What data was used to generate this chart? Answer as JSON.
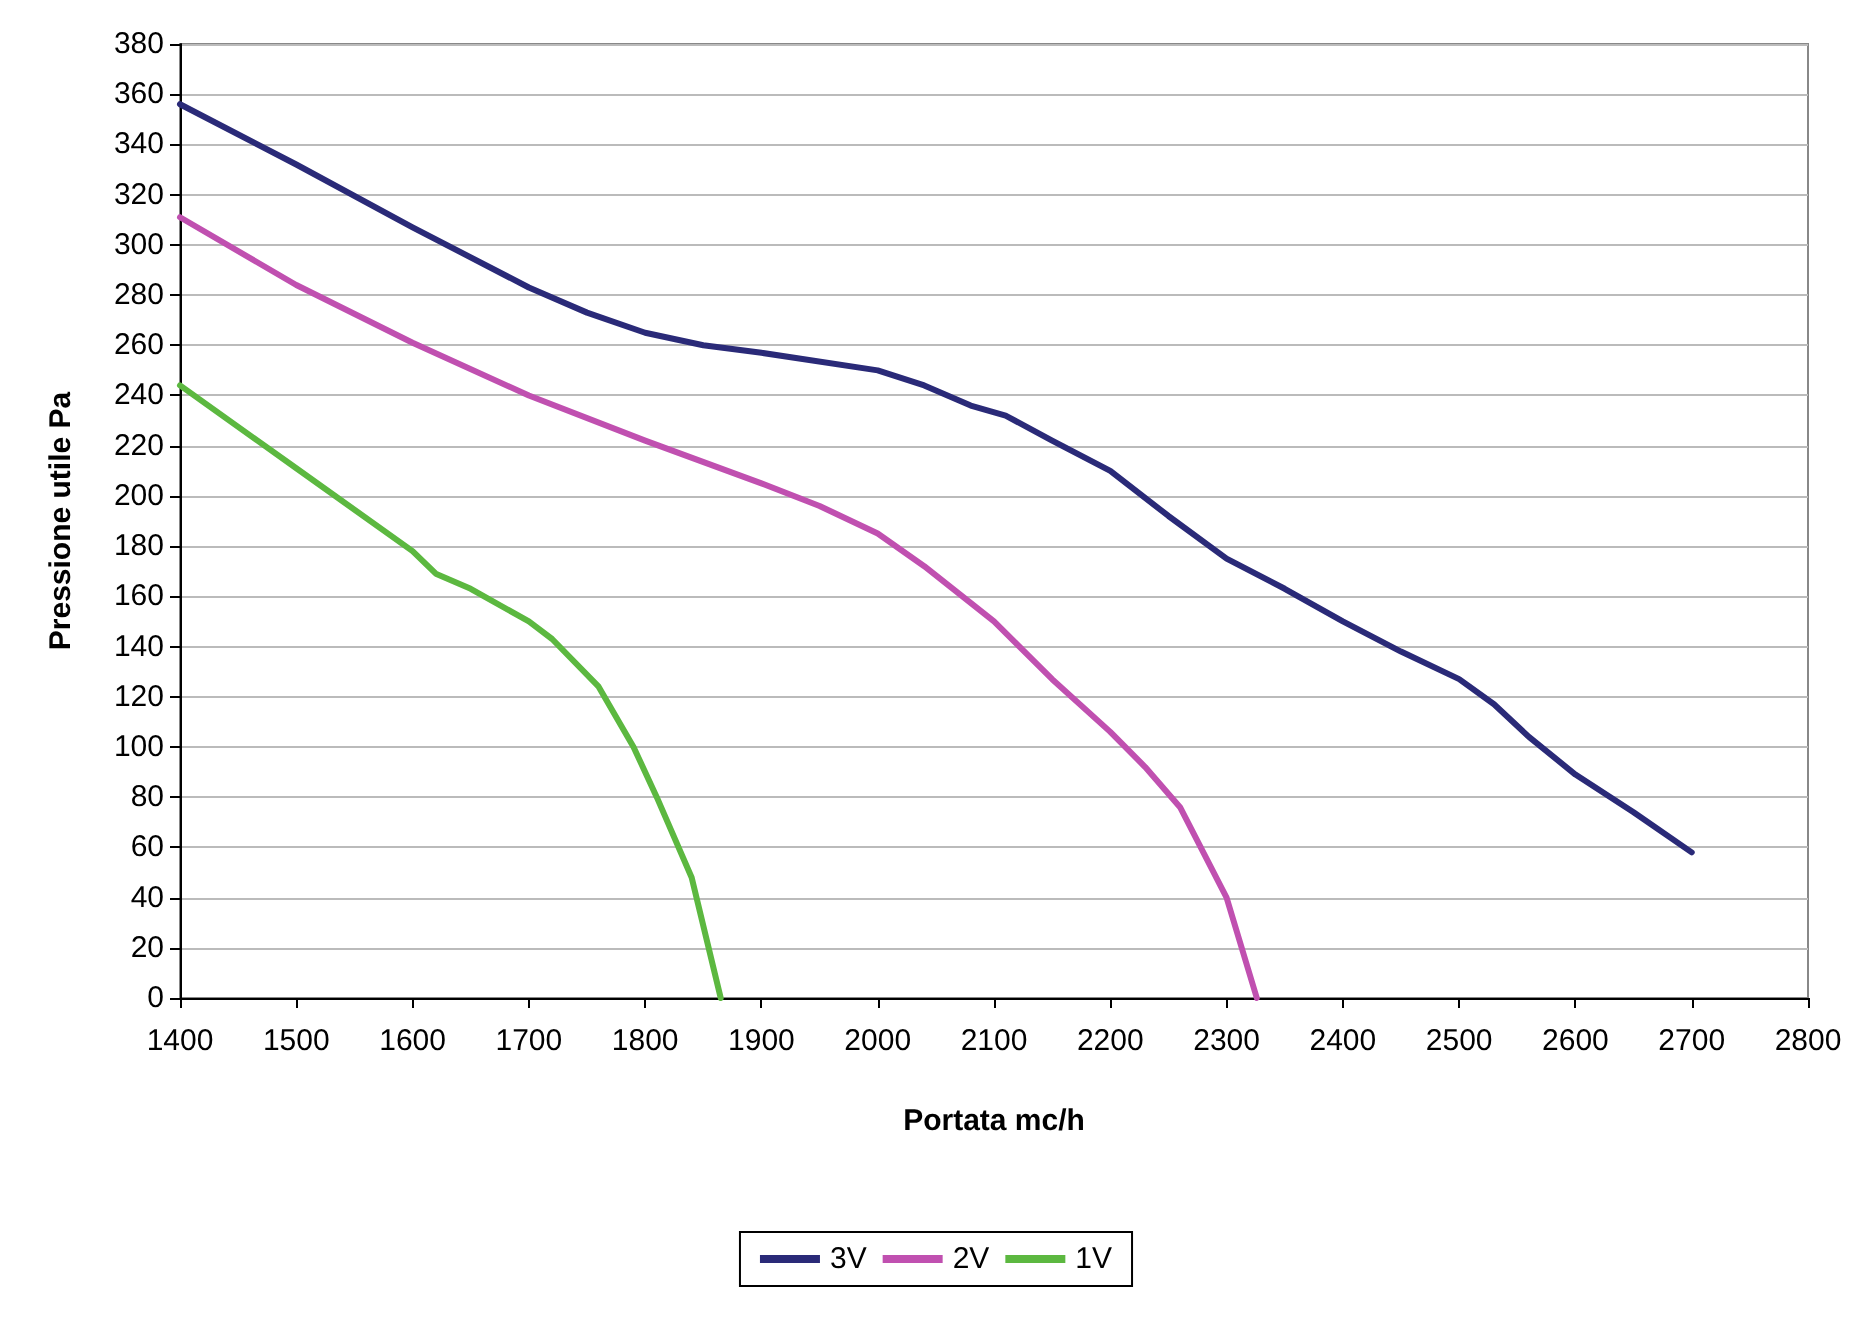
{
  "chart_data": {
    "type": "line",
    "xlabel": "Portata mc/h",
    "ylabel": "Pressione utile Pa",
    "xlim": [
      1400,
      2800
    ],
    "xticks": [
      1400,
      1500,
      1600,
      1700,
      1800,
      1900,
      2000,
      2100,
      2200,
      2300,
      2400,
      2500,
      2600,
      2700,
      2800
    ],
    "ylim": [
      0,
      380
    ],
    "yticks": [
      0,
      20,
      40,
      60,
      80,
      100,
      120,
      140,
      160,
      180,
      200,
      220,
      240,
      260,
      280,
      300,
      320,
      340,
      360,
      380
    ],
    "grid": "y",
    "legend": "bottom",
    "marker": "none",
    "line_style": "solid",
    "series": [
      {
        "name": "3V",
        "color": "#2a2a78",
        "x": [
          1400,
          1500,
          1600,
          1700,
          1750,
          1800,
          1850,
          1900,
          2000,
          2040,
          2080,
          2110,
          2150,
          2200,
          2250,
          2300,
          2350,
          2400,
          2450,
          2500,
          2530,
          2560,
          2600,
          2650,
          2700
        ],
        "values": [
          356,
          332,
          307,
          283,
          273,
          265,
          260,
          257,
          250,
          244,
          236,
          232,
          222,
          210,
          192,
          175,
          163,
          150,
          138,
          127,
          117,
          104,
          89,
          74,
          58
        ]
      },
      {
        "name": "2V",
        "color": "#c050b0",
        "x": [
          1400,
          1500,
          1600,
          1700,
          1800,
          1900,
          1950,
          2000,
          2040,
          2100,
          2150,
          2200,
          2230,
          2260,
          2300,
          2326
        ],
        "values": [
          311,
          284,
          261,
          240,
          222,
          205,
          196,
          185,
          172,
          150,
          127,
          106,
          92,
          76,
          40,
          0
        ]
      },
      {
        "name": "1V",
        "color": "#5cb840",
        "x": [
          1400,
          1500,
          1600,
          1620,
          1650,
          1700,
          1720,
          1760,
          1790,
          1810,
          1840,
          1865
        ],
        "values": [
          244,
          211,
          178,
          169,
          163,
          150,
          143,
          124,
          100,
          80,
          48,
          0
        ]
      }
    ]
  }
}
